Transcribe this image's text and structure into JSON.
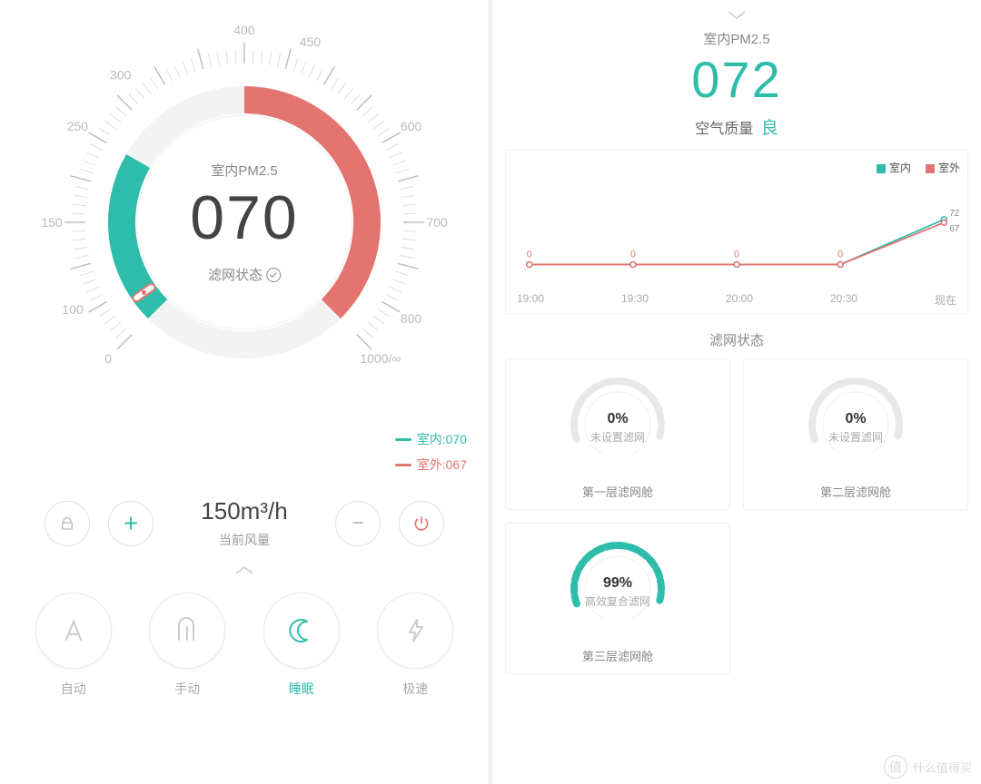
{
  "colors": {
    "teal": "#2ebdaa",
    "red": "#e4746f",
    "grey": "#cccccc",
    "text_dark": "#444444",
    "text_mid": "#888888",
    "text_light": "#aaaaaa",
    "border": "#eeeeee",
    "bg": "#ffffff"
  },
  "left": {
    "gauge": {
      "ticks": [
        "0",
        "100",
        "150",
        "250",
        "300",
        "400",
        "450",
        "600",
        "700",
        "800",
        "1000/∞"
      ],
      "tick_angles_deg": [
        225,
        207,
        180,
        150,
        130,
        90,
        70,
        30,
        0,
        -30,
        -45
      ],
      "value_angle_deg": 215,
      "center_label": "室内PM2.5",
      "center_value": "070",
      "filter_status": "滤网状态"
    },
    "legend": [
      {
        "color": "#2ebdaa",
        "text": "室内:070"
      },
      {
        "color": "#e4746f",
        "text": "室外:067"
      }
    ],
    "airflow": {
      "value": "150m³/h",
      "label": "当前风量"
    },
    "buttons": {
      "lock": "lock",
      "plus": "+",
      "minus": "−",
      "power": "power"
    },
    "modes": [
      {
        "key": "auto",
        "label": "自动",
        "active": false
      },
      {
        "key": "manual",
        "label": "手动",
        "active": false
      },
      {
        "key": "sleep",
        "label": "睡眠",
        "active": true
      },
      {
        "key": "turbo",
        "label": "极速",
        "active": false
      }
    ]
  },
  "right": {
    "pm25_label": "室内PM2.5",
    "pm25_value": "072",
    "aq_prefix": "空气质量",
    "aq_level": "良",
    "chart": {
      "legend": [
        {
          "color": "#2ebdaa",
          "text": "室内"
        },
        {
          "color": "#e4746f",
          "text": "室外"
        }
      ],
      "x_labels": [
        "19:00",
        "19:30",
        "20:00",
        "20:30",
        "现在"
      ],
      "indoor_series": [
        0,
        0,
        0,
        0,
        72
      ],
      "outdoor_series": [
        0,
        0,
        0,
        0,
        67
      ],
      "ymax": 100,
      "end_labels": [
        "72",
        "67"
      ]
    },
    "filter_title": "滤网状态",
    "filters": [
      {
        "pct": "0%",
        "value": 0,
        "type": "未设置滤网",
        "slot": "第一层滤网舱"
      },
      {
        "pct": "0%",
        "value": 0,
        "type": "未设置滤网",
        "slot": "第二层滤网舱"
      },
      {
        "pct": "99%",
        "value": 99,
        "type": "高效复合滤网",
        "slot": "第三层滤网舱"
      }
    ]
  },
  "watermark": {
    "badge": "值",
    "text": "什么值得买"
  }
}
